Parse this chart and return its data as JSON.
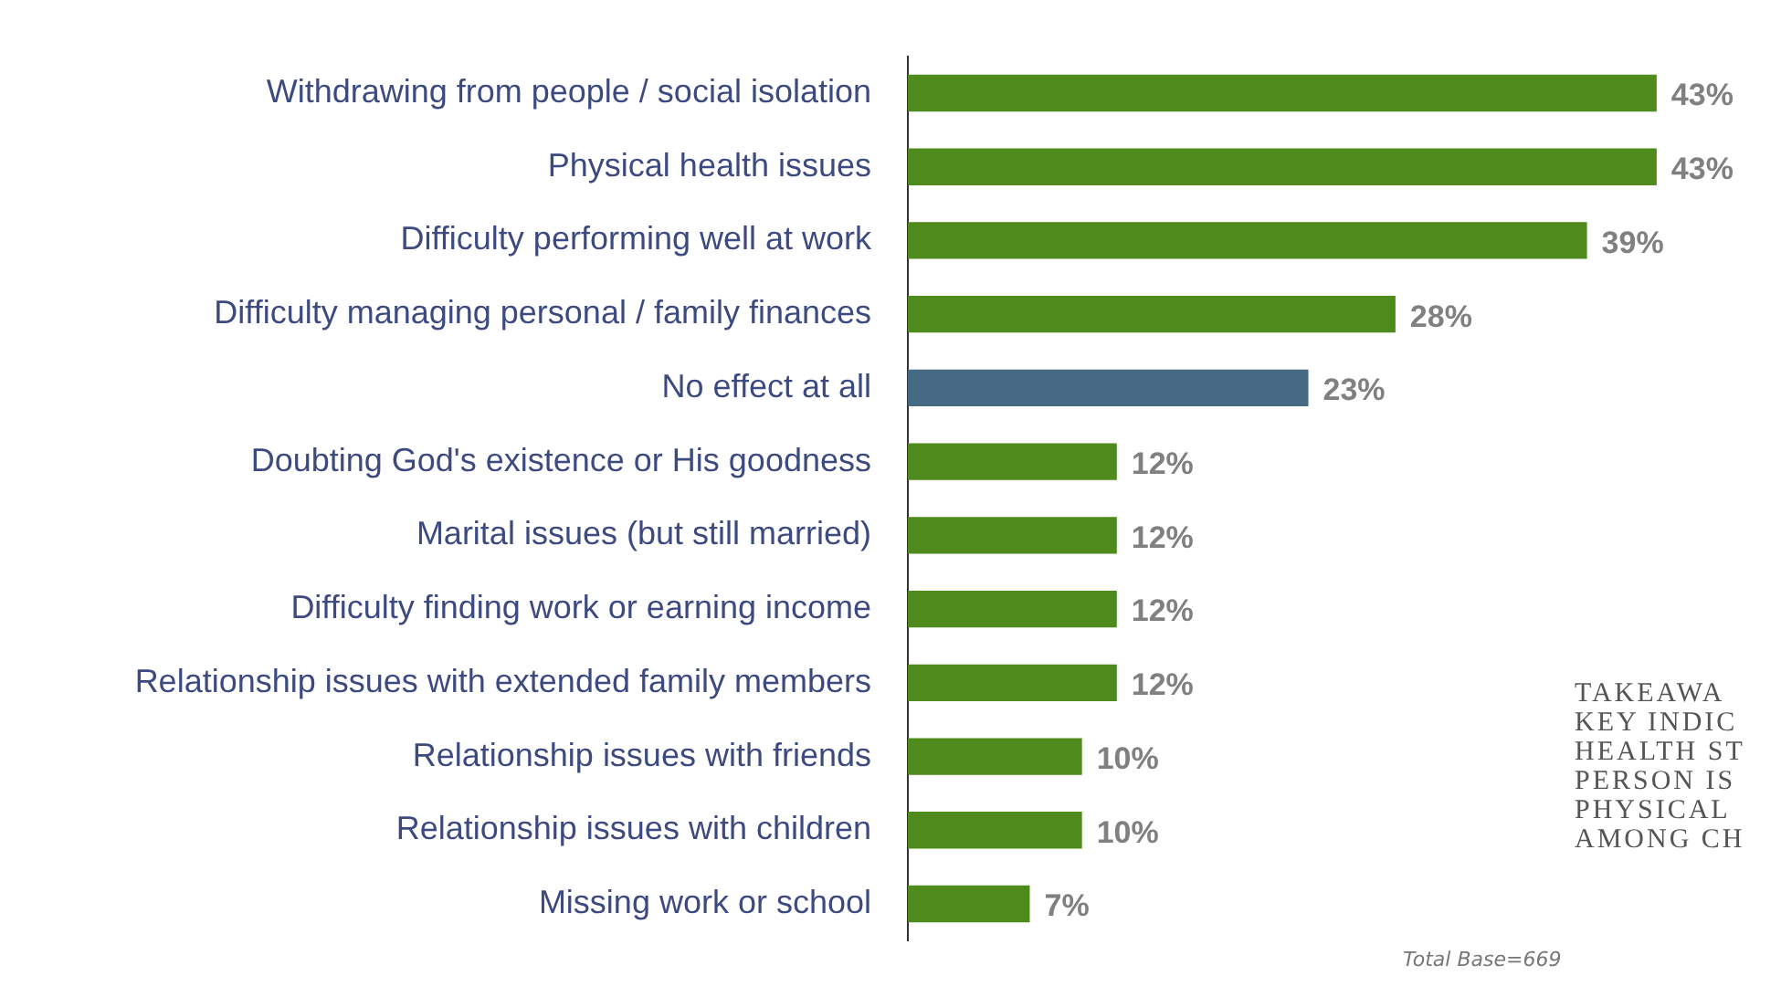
{
  "chart_data": {
    "type": "bar",
    "orientation": "horizontal",
    "categories": [
      "Withdrawing from people / social isolation",
      "Physical health issues",
      "Difficulty performing well at work",
      "Difficulty managing personal / family finances",
      "No effect at all",
      "Doubting God's existence or His goodness",
      "Marital issues (but still married)",
      "Difficulty finding work or earning income",
      "Relationship issues with extended family members",
      "Relationship issues with friends",
      "Relationship issues with children",
      "Missing work or school"
    ],
    "values": [
      43,
      43,
      39,
      28,
      23,
      12,
      12,
      12,
      12,
      10,
      10,
      7
    ],
    "colors": [
      "#4e8a1c",
      "#4e8a1c",
      "#4e8a1c",
      "#4e8a1c",
      "#466a84",
      "#4e8a1c",
      "#4e8a1c",
      "#4e8a1c",
      "#4e8a1c",
      "#4e8a1c",
      "#4e8a1c",
      "#4e8a1c"
    ],
    "value_labels": [
      "43%",
      "43%",
      "39%",
      "28%",
      "23%",
      "12%",
      "12%",
      "12%",
      "12%",
      "10%",
      "10%",
      "7%"
    ],
    "annotations": [
      "TAKEAWA\nKEY INDIC\nHEALTH ST\nPERSON IS\nPHYSICAL\nAMONG CH",
      "Total Base=669"
    ],
    "legend": false
  }
}
